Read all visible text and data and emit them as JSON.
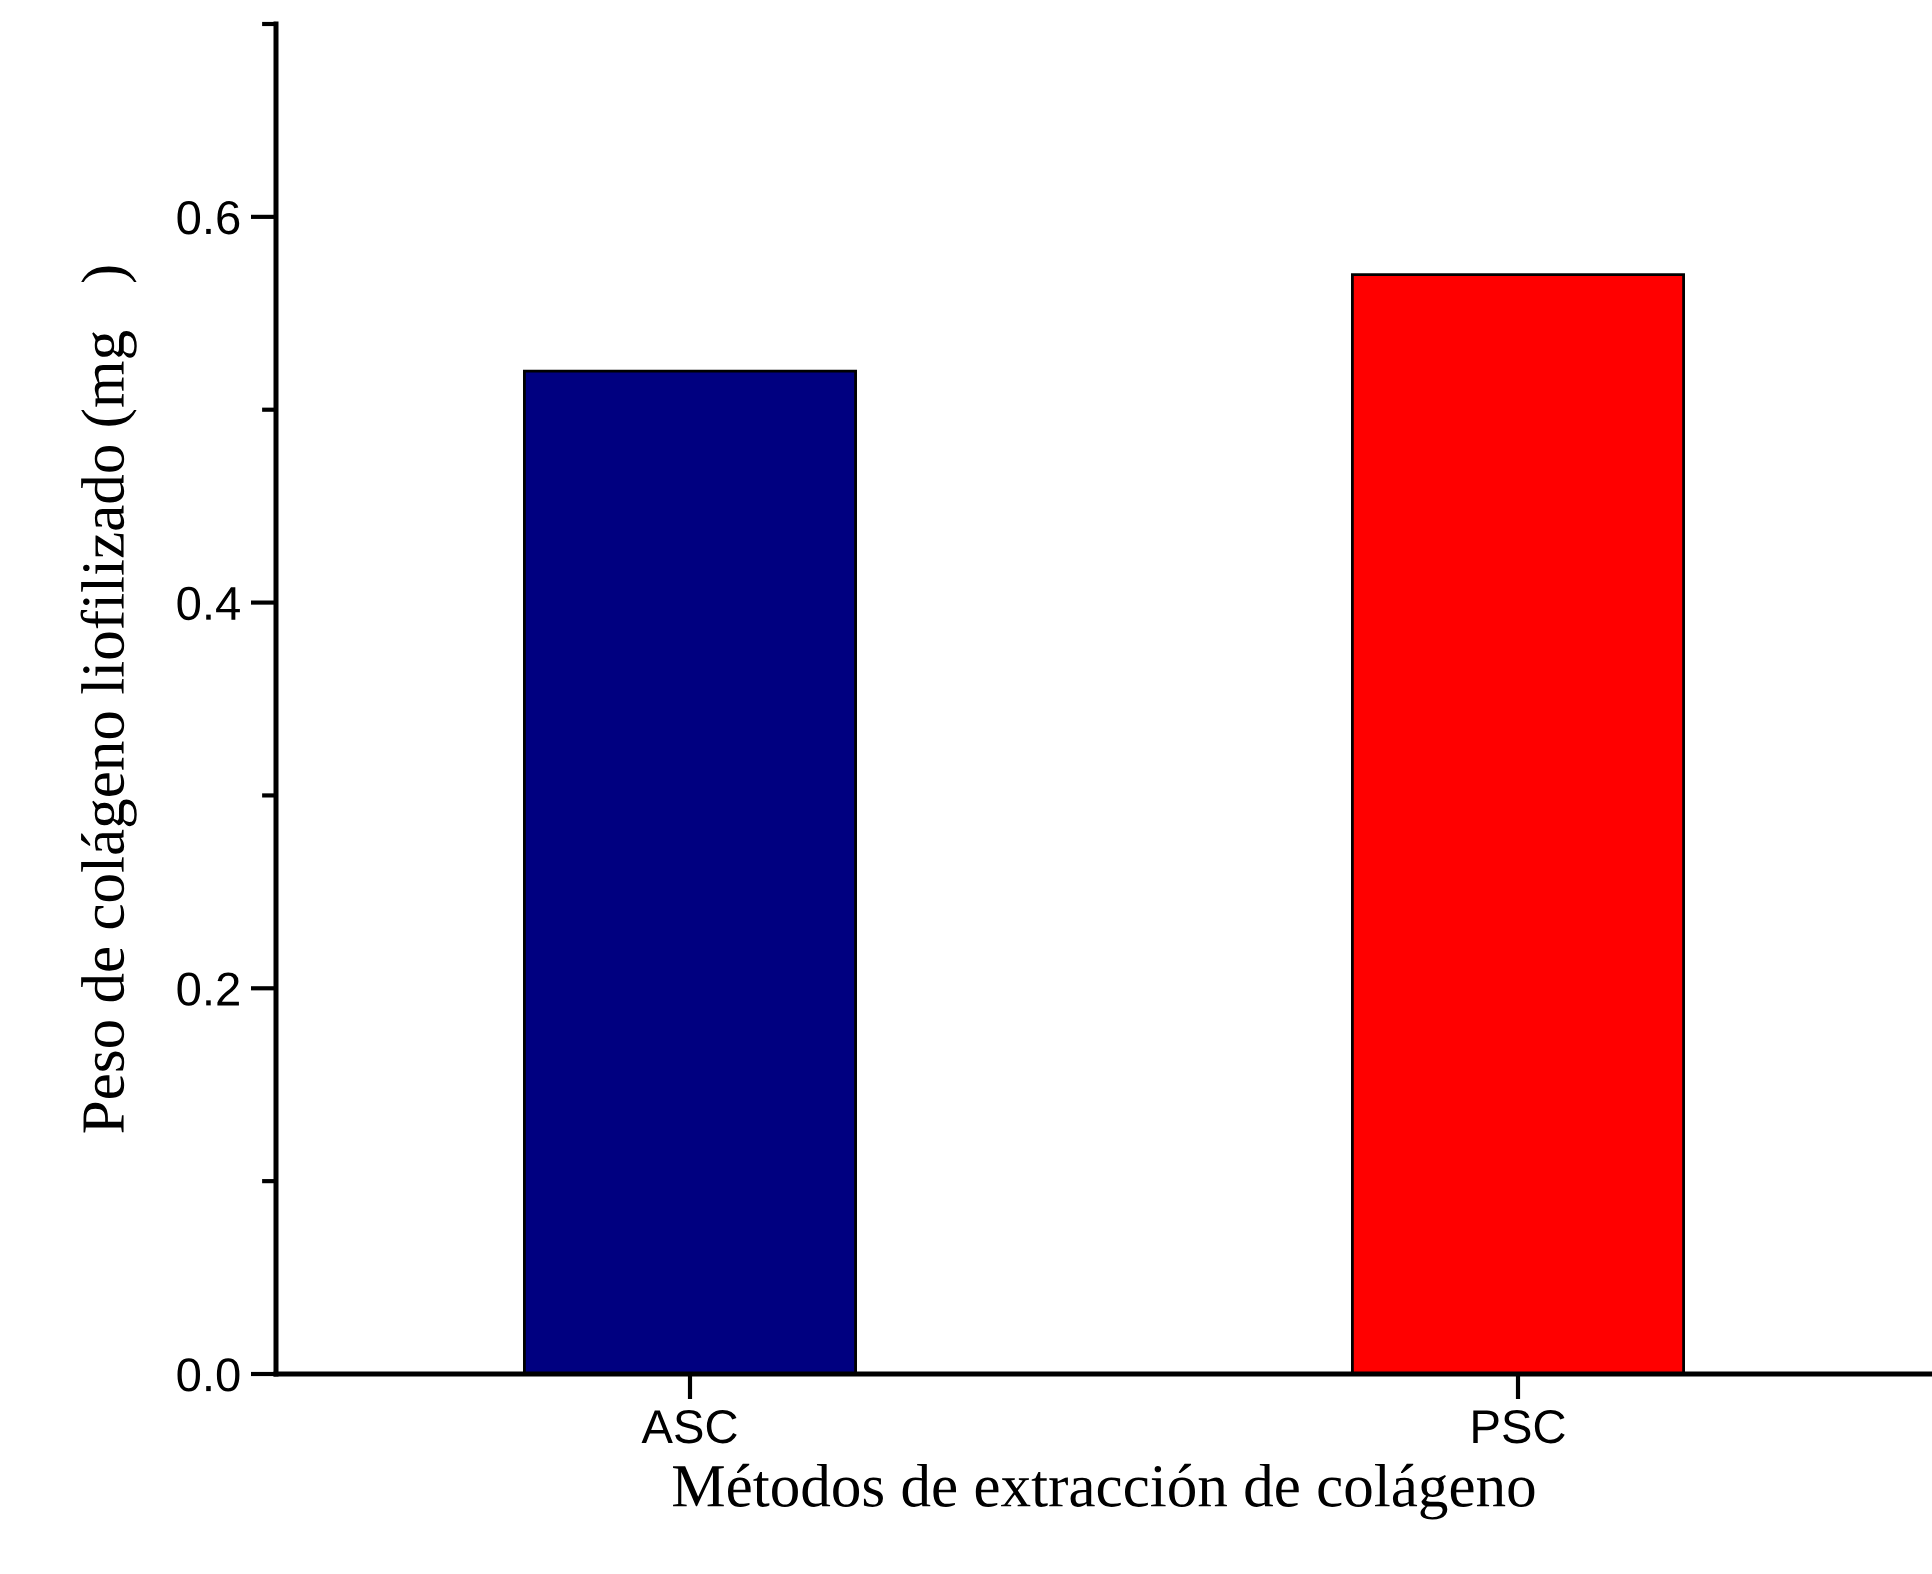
{
  "chart_data": {
    "type": "bar",
    "xlabel": "Métodos de extracción de colágeno",
    "ylabel": "Peso de colágeno liofilizado (mg   )",
    "categories": [
      "ASC",
      "PSC"
    ],
    "values": [
      0.52,
      0.57
    ],
    "colors": [
      "#000080",
      "#ff0000"
    ],
    "ylim": [
      0,
      0.7
    ],
    "yticks": [
      {
        "value": 0,
        "label": "0.0"
      },
      0.2,
      0.4,
      0.6
    ],
    "grid": false,
    "legend": false
  }
}
